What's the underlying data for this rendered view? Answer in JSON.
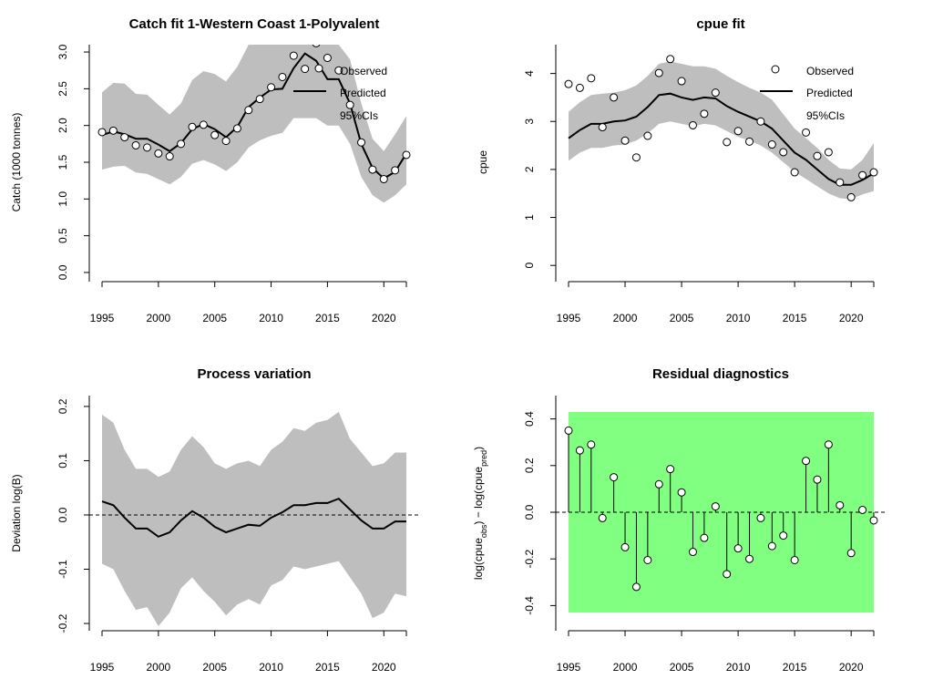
{
  "colors": {
    "band": "#bebebe",
    "line": "#000000",
    "point_fill": "#ffffff",
    "residual_band": "#80ff80"
  },
  "chart_data": [
    {
      "id": "catch",
      "type": "line",
      "title": "Catch fit 1-Western Coast 1-Polyvalent",
      "xlabel": "",
      "ylabel": "Catch (1000 tonnes)",
      "xlim": [
        1994,
        2023
      ],
      "ylim": [
        -0.1,
        3.1
      ],
      "xticks": [
        1995,
        2000,
        2005,
        2010,
        2015,
        2020
      ],
      "yticks": [
        0.0,
        0.5,
        1.0,
        1.5,
        2.0,
        2.5,
        3.0
      ],
      "ytick_labels": [
        "0.0",
        "0.5",
        "1.0",
        "1.5",
        "2.0",
        "2.5",
        "3.0"
      ],
      "legend": {
        "position": "top-right",
        "entries": [
          "Observed",
          "Predicted",
          "95%CIs"
        ]
      },
      "x": [
        1995,
        1996,
        1997,
        1998,
        1999,
        2000,
        2001,
        2002,
        2003,
        2004,
        2005,
        2006,
        2007,
        2008,
        2009,
        2010,
        2011,
        2012,
        2013,
        2014,
        2015,
        2016,
        2017,
        2018,
        2019,
        2020,
        2021,
        2022
      ],
      "series": [
        {
          "name": "Observed",
          "kind": "points",
          "values": [
            1.91,
            1.93,
            1.84,
            1.73,
            1.7,
            1.62,
            1.58,
            1.75,
            1.98,
            2.01,
            1.87,
            1.79,
            1.96,
            2.21,
            2.36,
            2.52,
            2.66,
            2.95,
            2.77,
            3.12,
            2.92,
            2.75,
            2.28,
            1.77,
            1.4,
            1.27,
            1.39,
            1.6
          ]
        },
        {
          "name": "Predicted",
          "kind": "line",
          "values": [
            1.87,
            1.92,
            1.88,
            1.82,
            1.82,
            1.74,
            1.65,
            1.76,
            1.95,
            2.02,
            1.95,
            1.84,
            1.98,
            2.25,
            2.38,
            2.49,
            2.5,
            2.78,
            2.98,
            2.88,
            2.63,
            2.63,
            2.3,
            1.75,
            1.42,
            1.28,
            1.37,
            1.62
          ]
        },
        {
          "name": "95%CIs",
          "kind": "band",
          "lower": [
            1.4,
            1.44,
            1.45,
            1.36,
            1.34,
            1.27,
            1.2,
            1.3,
            1.48,
            1.53,
            1.47,
            1.38,
            1.5,
            1.7,
            1.8,
            1.86,
            1.9,
            2.1,
            2.1,
            2.1,
            2.0,
            2.0,
            1.75,
            1.3,
            1.05,
            0.95,
            1.05,
            1.2
          ],
          "upper": [
            2.45,
            2.58,
            2.57,
            2.43,
            2.42,
            2.28,
            2.15,
            2.3,
            2.62,
            2.74,
            2.7,
            2.6,
            2.8,
            3.1,
            3.1,
            3.1,
            3.1,
            3.1,
            3.1,
            3.1,
            3.1,
            3.1,
            2.9,
            2.3,
            1.82,
            1.65,
            1.88,
            2.13
          ]
        }
      ]
    },
    {
      "id": "cpue",
      "type": "line",
      "title": "cpue fit",
      "xlabel": "",
      "ylabel": "cpue",
      "xlim": [
        1994,
        2023
      ],
      "ylim": [
        -0.3,
        4.6
      ],
      "xticks": [
        1995,
        2000,
        2005,
        2010,
        2015,
        2020
      ],
      "yticks": [
        0,
        1,
        2,
        3,
        4
      ],
      "ytick_labels": [
        "0",
        "1",
        "2",
        "3",
        "4"
      ],
      "legend": {
        "position": "top-right",
        "entries": [
          "Observed",
          "Predicted",
          "95%CIs"
        ]
      },
      "x": [
        1995,
        1996,
        1997,
        1998,
        1999,
        2000,
        2001,
        2002,
        2003,
        2004,
        2005,
        2006,
        2007,
        2008,
        2009,
        2010,
        2011,
        2012,
        2013,
        2014,
        2015,
        2016,
        2017,
        2018,
        2019,
        2020,
        2021,
        2022
      ],
      "series": [
        {
          "name": "Observed",
          "kind": "points",
          "values": [
            3.78,
            3.7,
            3.9,
            2.88,
            3.5,
            2.6,
            2.25,
            2.7,
            4.01,
            4.3,
            3.84,
            2.92,
            3.16,
            3.6,
            2.57,
            2.8,
            2.58,
            3.0,
            2.52,
            2.36,
            1.94,
            2.77,
            2.28,
            2.36,
            1.73,
            1.42,
            1.88,
            1.94
          ]
        },
        {
          "name": "Predicted",
          "kind": "line",
          "values": [
            2.65,
            2.82,
            2.95,
            2.95,
            3.0,
            3.02,
            3.1,
            3.3,
            3.55,
            3.58,
            3.5,
            3.45,
            3.5,
            3.48,
            3.32,
            3.2,
            3.1,
            3.0,
            2.85,
            2.6,
            2.35,
            2.2,
            2.0,
            1.8,
            1.68,
            1.68,
            1.78,
            1.92
          ]
        },
        {
          "name": "95%CIs",
          "kind": "band",
          "lower": [
            2.18,
            2.35,
            2.45,
            2.45,
            2.5,
            2.52,
            2.6,
            2.75,
            2.95,
            3.0,
            2.95,
            2.9,
            2.95,
            2.92,
            2.8,
            2.68,
            2.6,
            2.5,
            2.35,
            2.15,
            1.95,
            1.8,
            1.65,
            1.5,
            1.4,
            1.38,
            1.48,
            1.55
          ],
          "upper": [
            3.2,
            3.4,
            3.55,
            3.58,
            3.6,
            3.65,
            3.75,
            3.95,
            4.2,
            4.25,
            4.2,
            4.15,
            4.15,
            4.1,
            3.95,
            3.82,
            3.7,
            3.6,
            3.45,
            3.15,
            2.85,
            2.65,
            2.45,
            2.2,
            2.02,
            2.0,
            2.2,
            2.55
          ]
        }
      ]
    },
    {
      "id": "process",
      "type": "line",
      "title": "Process variation",
      "xlabel": "",
      "ylabel": "Deviation log(B)",
      "xlim": [
        1994,
        2023
      ],
      "ylim": [
        -0.21,
        0.22
      ],
      "xticks": [
        1995,
        2000,
        2005,
        2010,
        2015,
        2020
      ],
      "yticks": [
        -0.2,
        -0.1,
        0.0,
        0.1,
        0.2
      ],
      "ytick_labels": [
        "-0.2",
        "-0.1",
        "0.0",
        "0.1",
        "0.2"
      ],
      "reference_line": 0,
      "x": [
        1995,
        1996,
        1997,
        1998,
        1999,
        2000,
        2001,
        2002,
        2003,
        2004,
        2005,
        2006,
        2007,
        2008,
        2009,
        2010,
        2011,
        2012,
        2013,
        2014,
        2015,
        2016,
        2017,
        2018,
        2019,
        2020,
        2021,
        2022
      ],
      "series": [
        {
          "name": "",
          "kind": "line",
          "values": [
            0.025,
            0.018,
            -0.005,
            -0.025,
            -0.025,
            -0.04,
            -0.032,
            -0.01,
            0.007,
            -0.005,
            -0.022,
            -0.032,
            -0.025,
            -0.018,
            -0.02,
            -0.005,
            0.005,
            0.018,
            0.018,
            0.022,
            0.022,
            0.03,
            0.01,
            -0.01,
            -0.025,
            -0.025,
            -0.012,
            -0.012
          ]
        },
        {
          "name": "",
          "kind": "band",
          "lower": [
            -0.09,
            -0.1,
            -0.14,
            -0.175,
            -0.17,
            -0.205,
            -0.18,
            -0.135,
            -0.115,
            -0.14,
            -0.16,
            -0.185,
            -0.165,
            -0.155,
            -0.165,
            -0.13,
            -0.12,
            -0.095,
            -0.1,
            -0.095,
            -0.09,
            -0.085,
            -0.115,
            -0.145,
            -0.19,
            -0.18,
            -0.145,
            -0.15
          ],
          "upper": [
            0.185,
            0.17,
            0.12,
            0.085,
            0.085,
            0.07,
            0.08,
            0.12,
            0.145,
            0.125,
            0.095,
            0.085,
            0.095,
            0.1,
            0.09,
            0.12,
            0.135,
            0.16,
            0.155,
            0.17,
            0.175,
            0.19,
            0.14,
            0.115,
            0.09,
            0.095,
            0.115,
            0.115
          ]
        }
      ]
    },
    {
      "id": "residual",
      "type": "scatter",
      "title": "Residual diagnostics",
      "xlabel": "",
      "ylabel": "log(cpue_obs) − log(cpue_pred)",
      "ylabel_parts": {
        "a": "log(cpue",
        "sub_a": "obs",
        "b": ") − log(cpue",
        "sub_b": "pred",
        "c": ")"
      },
      "xlim": [
        1994,
        2023
      ],
      "ylim": [
        -0.5,
        0.5
      ],
      "xticks": [
        1995,
        2000,
        2005,
        2010,
        2015,
        2020
      ],
      "yticks": [
        -0.4,
        -0.2,
        0.0,
        0.2,
        0.4
      ],
      "ytick_labels": [
        "-0.4",
        "-0.2",
        "0.0",
        "0.2",
        "0.4"
      ],
      "reference_line": 0,
      "shaded_band": [
        -0.43,
        0.43
      ],
      "x": [
        1995,
        1996,
        1997,
        1998,
        1999,
        2000,
        2001,
        2002,
        2003,
        2004,
        2005,
        2006,
        2007,
        2008,
        2009,
        2010,
        2011,
        2012,
        2013,
        2014,
        2015,
        2016,
        2017,
        2018,
        2019,
        2020,
        2021,
        2022
      ],
      "series": [
        {
          "name": "",
          "kind": "stems",
          "values": [
            0.35,
            0.265,
            0.29,
            -0.025,
            0.15,
            -0.15,
            -0.32,
            -0.205,
            0.12,
            0.185,
            0.085,
            -0.17,
            -0.11,
            0.025,
            -0.265,
            -0.155,
            -0.2,
            -0.025,
            -0.145,
            -0.1,
            -0.205,
            0.22,
            0.14,
            0.29,
            0.03,
            -0.175,
            0.01,
            -0.035
          ]
        }
      ]
    }
  ]
}
